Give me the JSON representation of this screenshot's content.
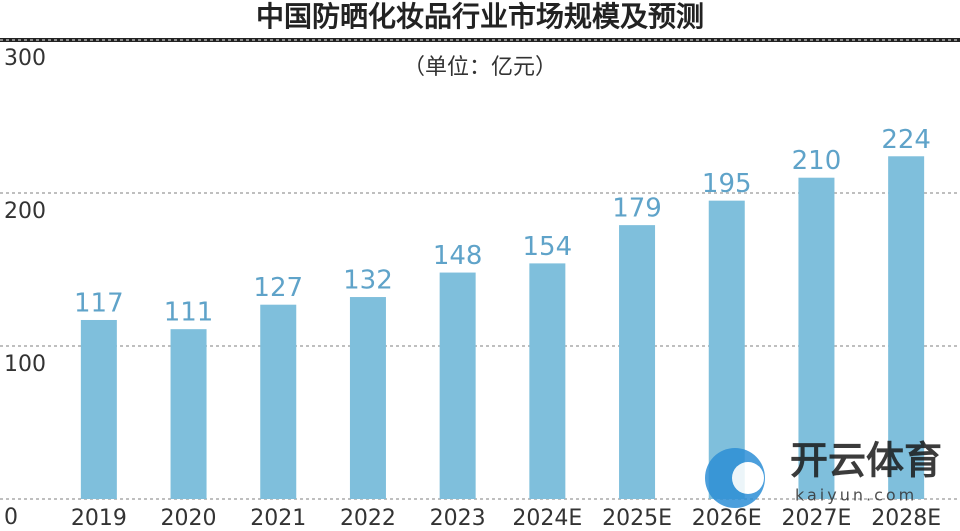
{
  "chart_data": {
    "type": "bar",
    "title": "中国防晒化妆品行业市场规模及预测",
    "subtitle": "（单位：亿元）",
    "categories": [
      "2019",
      "2020",
      "2021",
      "2022",
      "2023",
      "2024E",
      "2025E",
      "2026E",
      "2027E",
      "2028E"
    ],
    "values": [
      117,
      111,
      127,
      132,
      148,
      154,
      179,
      195,
      210,
      224
    ],
    "color": "#7fbfdc",
    "value_label_color": "#5fa3c9",
    "ylim": [
      0,
      300
    ],
    "yticks": [
      0,
      100,
      200,
      300
    ],
    "grid": true
  },
  "watermark": {
    "brand": "开云体育",
    "site": "kaiyun.com"
  }
}
